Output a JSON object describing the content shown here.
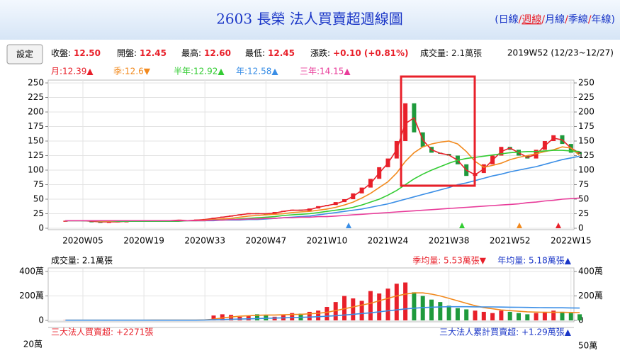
{
  "header": {
    "title": "2603 長榮 法人買賣超週線圖",
    "links_open": "(",
    "links_sep": "/",
    "links_close": ")",
    "links": [
      "日線",
      "週線",
      "月線",
      "季線",
      "年線"
    ],
    "active_link": 1
  },
  "info": {
    "button": "設定",
    "items": [
      {
        "label": "收盤:",
        "value": "12.50"
      },
      {
        "label": "開盤:",
        "value": "12.45"
      },
      {
        "label": "最高:",
        "value": "12.60"
      },
      {
        "label": "最低:",
        "value": "12.45"
      },
      {
        "label": "漲跌:",
        "value": "+0.10  (+0.81%)"
      },
      {
        "label": "成交量:",
        "value": "2.1萬張"
      }
    ],
    "date": "2019W52 (12/23~12/27)"
  },
  "chart_data": [
    {
      "type": "candlestick",
      "categories": [
        null,
        null,
        "2020W05",
        null,
        null,
        null,
        null,
        null,
        null,
        "2020W19",
        null,
        null,
        null,
        null,
        null,
        null,
        "2020W33",
        null,
        null,
        null,
        null,
        null,
        null,
        "2020W47",
        null,
        null,
        null,
        null,
        null,
        null,
        "2021W10",
        null,
        null,
        null,
        null,
        null,
        null,
        "2021W24",
        null,
        null,
        null,
        null,
        null,
        null,
        "2021W38",
        null,
        null,
        null,
        null,
        null,
        null,
        "2021W52",
        null,
        null,
        null,
        null,
        null,
        null,
        "2022W15",
        null
      ],
      "values": [
        13,
        14,
        12,
        11,
        10,
        11,
        12,
        12,
        13,
        13,
        12,
        13,
        14,
        13,
        14,
        15,
        16,
        18,
        20,
        22,
        24,
        26,
        25,
        24,
        28,
        30,
        32,
        30,
        34,
        38,
        40,
        45,
        50,
        60,
        70,
        85,
        105,
        120,
        150,
        215,
        165,
        140,
        130,
        128,
        125,
        110,
        90,
        95,
        110,
        125,
        140,
        135,
        125,
        120,
        135,
        150,
        160,
        145,
        130,
        128
      ],
      "up_color": "#e8202a",
      "down_color": "#1f9a3c",
      "series": [
        {
          "name": "月:12.39▲",
          "color": "#e8202a",
          "values": [
            13,
            13,
            13,
            12,
            11,
            11,
            11,
            12,
            12,
            13,
            13,
            12,
            13,
            14,
            13,
            14,
            15,
            17,
            19,
            21,
            23,
            25,
            25,
            25,
            26,
            29,
            31,
            31,
            32,
            36,
            39,
            42,
            47,
            55,
            65,
            77,
            95,
            112,
            135,
            180,
            190,
            152,
            135,
            129,
            126,
            117,
            100,
            92,
            102,
            117,
            132,
            138,
            130,
            122,
            127,
            142,
            155,
            152,
            138,
            129
          ]
        },
        {
          "name": "季:12.6▼",
          "color": "#f28a1e",
          "values": [
            13,
            13,
            13,
            13,
            12,
            12,
            12,
            12,
            12,
            12,
            12,
            12,
            13,
            13,
            13,
            13,
            14,
            15,
            16,
            17,
            19,
            21,
            22,
            23,
            24,
            25,
            27,
            28,
            29,
            31,
            33,
            36,
            40,
            45,
            52,
            60,
            70,
            80,
            95,
            115,
            130,
            140,
            145,
            148,
            150,
            145,
            132,
            115,
            105,
            108,
            112,
            118,
            122,
            125,
            128,
            132,
            135,
            140,
            138,
            125
          ]
        },
        {
          "name": "半年:12.92▲",
          "color": "#33cc33",
          "values": [
            13,
            13,
            13,
            13,
            13,
            13,
            12,
            12,
            12,
            12,
            12,
            12,
            12,
            12,
            13,
            13,
            13,
            14,
            14,
            15,
            16,
            17,
            18,
            19,
            20,
            22,
            23,
            24,
            25,
            27,
            29,
            31,
            33,
            36,
            40,
            45,
            50,
            57,
            65,
            75,
            85,
            93,
            100,
            106,
            112,
            117,
            120,
            122,
            124,
            126,
            128,
            130,
            131,
            132,
            132,
            133,
            134,
            134,
            133,
            132
          ]
        },
        {
          "name": "年:12.58▲",
          "color": "#3a8ee6",
          "values": [
            13,
            13,
            13,
            13,
            13,
            13,
            13,
            13,
            13,
            13,
            13,
            13,
            13,
            13,
            13,
            13,
            13,
            13,
            14,
            14,
            14,
            15,
            15,
            16,
            17,
            18,
            19,
            20,
            21,
            23,
            25,
            27,
            29,
            31,
            33,
            36,
            39,
            42,
            46,
            50,
            54,
            58,
            62,
            66,
            70,
            75,
            78,
            82,
            86,
            90,
            93,
            97,
            100,
            103,
            106,
            110,
            114,
            118,
            121,
            124
          ]
        },
        {
          "name": "三年:14.15▲",
          "color": "#e83c9a",
          "values": [
            13,
            13,
            13,
            13,
            13,
            13,
            13,
            13,
            13,
            13,
            13,
            13,
            13,
            13,
            13,
            13,
            13,
            14,
            14,
            15,
            15,
            16,
            16,
            17,
            17,
            18,
            18,
            19,
            19,
            20,
            20,
            21,
            22,
            23,
            24,
            25,
            26,
            27,
            28,
            29,
            30,
            31,
            32,
            33,
            34,
            35,
            36,
            37,
            38,
            39,
            40,
            41,
            42,
            44,
            45,
            47,
            48,
            50,
            51,
            52
          ]
        }
      ],
      "ylim": [
        0,
        250
      ],
      "yticks": [
        0,
        25,
        50,
        75,
        100,
        125,
        150,
        175,
        200,
        225,
        250
      ],
      "y2lim": [
        0,
        250
      ],
      "y2ticks": [
        0,
        25,
        50,
        75,
        100,
        125,
        150,
        175,
        200,
        225,
        250
      ],
      "grid": true
    },
    {
      "type": "bar",
      "title": "成交量: 2.1萬張",
      "values": [
        2,
        2,
        2,
        2,
        2,
        2,
        2,
        2,
        3,
        3,
        3,
        3,
        3,
        3,
        4,
        4,
        5,
        40,
        50,
        45,
        30,
        35,
        50,
        40,
        30,
        45,
        60,
        55,
        70,
        80,
        110,
        150,
        200,
        180,
        160,
        240,
        220,
        260,
        300,
        310,
        230,
        200,
        170,
        150,
        120,
        100,
        90,
        80,
        70,
        60,
        80,
        70,
        60,
        50,
        60,
        70,
        80,
        70,
        60,
        50
      ],
      "series": [
        {
          "name": "季均量: 5.53萬張▼",
          "color": "#f28a1e",
          "values": [
            2,
            2,
            2,
            2,
            2,
            2,
            2,
            2,
            2,
            2,
            3,
            3,
            3,
            3,
            3,
            3,
            4,
            10,
            20,
            28,
            34,
            38,
            42,
            44,
            44,
            46,
            48,
            50,
            54,
            58,
            66,
            80,
            95,
            110,
            125,
            140,
            160,
            180,
            200,
            215,
            225,
            225,
            215,
            200,
            180,
            160,
            140,
            120,
            105,
            95,
            85,
            80,
            75,
            70,
            68,
            66,
            66,
            66,
            65,
            64
          ]
        },
        {
          "name": "年均量: 5.18萬張▲",
          "color": "#3a8ee6",
          "values": [
            2,
            2,
            2,
            2,
            2,
            2,
            2,
            2,
            2,
            2,
            2,
            2,
            2,
            2,
            2,
            2,
            3,
            5,
            7,
            9,
            11,
            13,
            15,
            17,
            19,
            21,
            23,
            25,
            27,
            30,
            34,
            38,
            44,
            50,
            56,
            62,
            70,
            78,
            86,
            94,
            100,
            105,
            108,
            110,
            112,
            112,
            112,
            111,
            110,
            110,
            109,
            108,
            107,
            106,
            105,
            104,
            103,
            103,
            102,
            101
          ]
        }
      ],
      "ylim": [
        0,
        400
      ],
      "yticks": [
        0,
        {
          "value": 200,
          "label": "200萬"
        },
        {
          "value": 400,
          "label": "400萬"
        }
      ],
      "y2lim": [
        0,
        400
      ],
      "y2ticks": [
        0,
        {
          "value": 200,
          "label": "200萬"
        },
        {
          "value": 400,
          "label": "400萬"
        }
      ],
      "grid": true
    }
  ],
  "lower_panel": {
    "title": "三大法人買賣超: +2271張",
    "subtitle": "三大法人累計買賣超: +1.29萬張▲",
    "left_label": "20萬",
    "right_label": "50萬"
  }
}
